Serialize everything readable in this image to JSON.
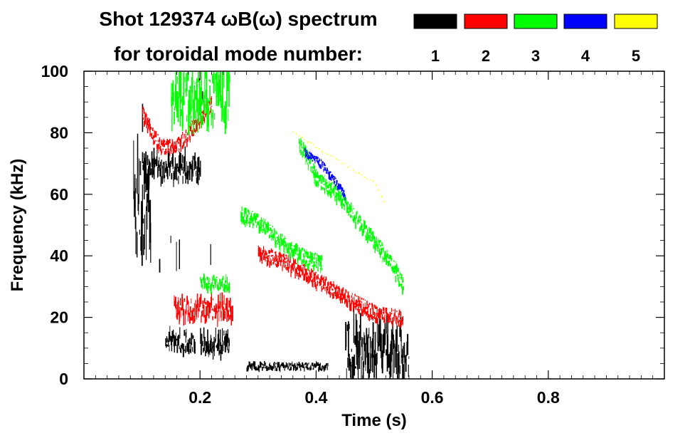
{
  "chart_data": {
    "type": "heatmap",
    "title_line1": "Shot 129374 ωB(ω) spectrum",
    "title_line2": "for toroidal mode number:",
    "xlabel": "Time (s)",
    "ylabel": "Frequency (kHz)",
    "xlim": [
      0.0,
      1.0
    ],
    "ylim": [
      0,
      100
    ],
    "x_ticks": [
      0.2,
      0.4,
      0.6,
      0.8
    ],
    "x_tick_labels": [
      "0.2",
      "0.4",
      "0.6",
      "0.8"
    ],
    "y_ticks": [
      0,
      20,
      40,
      60,
      80,
      100
    ],
    "y_tick_labels": [
      "0",
      "20",
      "40",
      "60",
      "80",
      "100"
    ],
    "legend": [
      {
        "label": "1",
        "color": "#000000"
      },
      {
        "label": "2",
        "color": "#ff0000"
      },
      {
        "label": "3",
        "color": "#00ff00"
      },
      {
        "label": "4",
        "color": "#0000ff"
      },
      {
        "label": "5",
        "color": "#ffff00"
      }
    ],
    "features": [
      {
        "mode": "1",
        "name": "n1-band-68kHz",
        "t": [
          0.1,
          0.2
        ],
        "f": [
          64,
          72
        ]
      },
      {
        "mode": "1",
        "name": "n1-burst-60kHz",
        "t": [
          0.085,
          0.115
        ],
        "f": [
          42,
          70
        ]
      },
      {
        "mode": "1",
        "name": "n1-spikes",
        "t": [
          0.1,
          0.22
        ],
        "f": [
          35,
          98
        ]
      },
      {
        "mode": "1",
        "name": "n1-low-0.15",
        "t": [
          0.14,
          0.19
        ],
        "f": [
          9,
          15
        ]
      },
      {
        "mode": "1",
        "name": "n1-low-0.21",
        "t": [
          0.2,
          0.25
        ],
        "f": [
          8,
          15
        ]
      },
      {
        "mode": "1",
        "name": "n1-low-0.34",
        "t": [
          0.28,
          0.42
        ],
        "f": [
          3,
          5
        ]
      },
      {
        "mode": "1",
        "name": "n1-low-0.5",
        "t": [
          0.45,
          0.56
        ],
        "f": [
          1,
          18
        ]
      },
      {
        "mode": "2",
        "name": "n2-arc-80kHz",
        "points": [
          [
            0.1,
            87
          ],
          [
            0.13,
            76
          ],
          [
            0.16,
            76
          ],
          [
            0.2,
            85
          ],
          [
            0.22,
            90
          ]
        ]
      },
      {
        "mode": "2",
        "name": "n2-0.23-21kHz",
        "t": [
          0.155,
          0.255
        ],
        "f": [
          19,
          26
        ]
      },
      {
        "mode": "2",
        "name": "n2-chirp",
        "points": [
          [
            0.3,
            42
          ],
          [
            0.35,
            38
          ],
          [
            0.4,
            33
          ],
          [
            0.45,
            27
          ],
          [
            0.5,
            22
          ],
          [
            0.55,
            20
          ]
        ]
      },
      {
        "mode": "3",
        "name": "n3-chirp-upper",
        "points": [
          [
            0.37,
            78
          ],
          [
            0.4,
            66
          ],
          [
            0.44,
            60
          ],
          [
            0.48,
            50
          ],
          [
            0.53,
            38
          ],
          [
            0.55,
            31
          ]
        ]
      },
      {
        "mode": "3",
        "name": "n3-chirp-lower",
        "points": [
          [
            0.27,
            54
          ],
          [
            0.3,
            52
          ],
          [
            0.34,
            45
          ],
          [
            0.38,
            40
          ],
          [
            0.41,
            38
          ]
        ]
      },
      {
        "mode": "3",
        "name": "n3-top-0.2",
        "t": [
          0.15,
          0.25
        ],
        "f": [
          84,
          100
        ]
      },
      {
        "mode": "3",
        "name": "n3-0.24-31kHz",
        "t": [
          0.2,
          0.25
        ],
        "f": [
          29,
          33
        ]
      },
      {
        "mode": "4",
        "name": "n4-chirp",
        "points": [
          [
            0.38,
            74
          ],
          [
            0.41,
            70
          ],
          [
            0.43,
            65
          ],
          [
            0.45,
            60
          ]
        ]
      },
      {
        "mode": "5",
        "name": "n5-traces",
        "points": [
          [
            0.36,
            80
          ],
          [
            0.5,
            64
          ],
          [
            0.52,
            57
          ]
        ]
      }
    ]
  }
}
